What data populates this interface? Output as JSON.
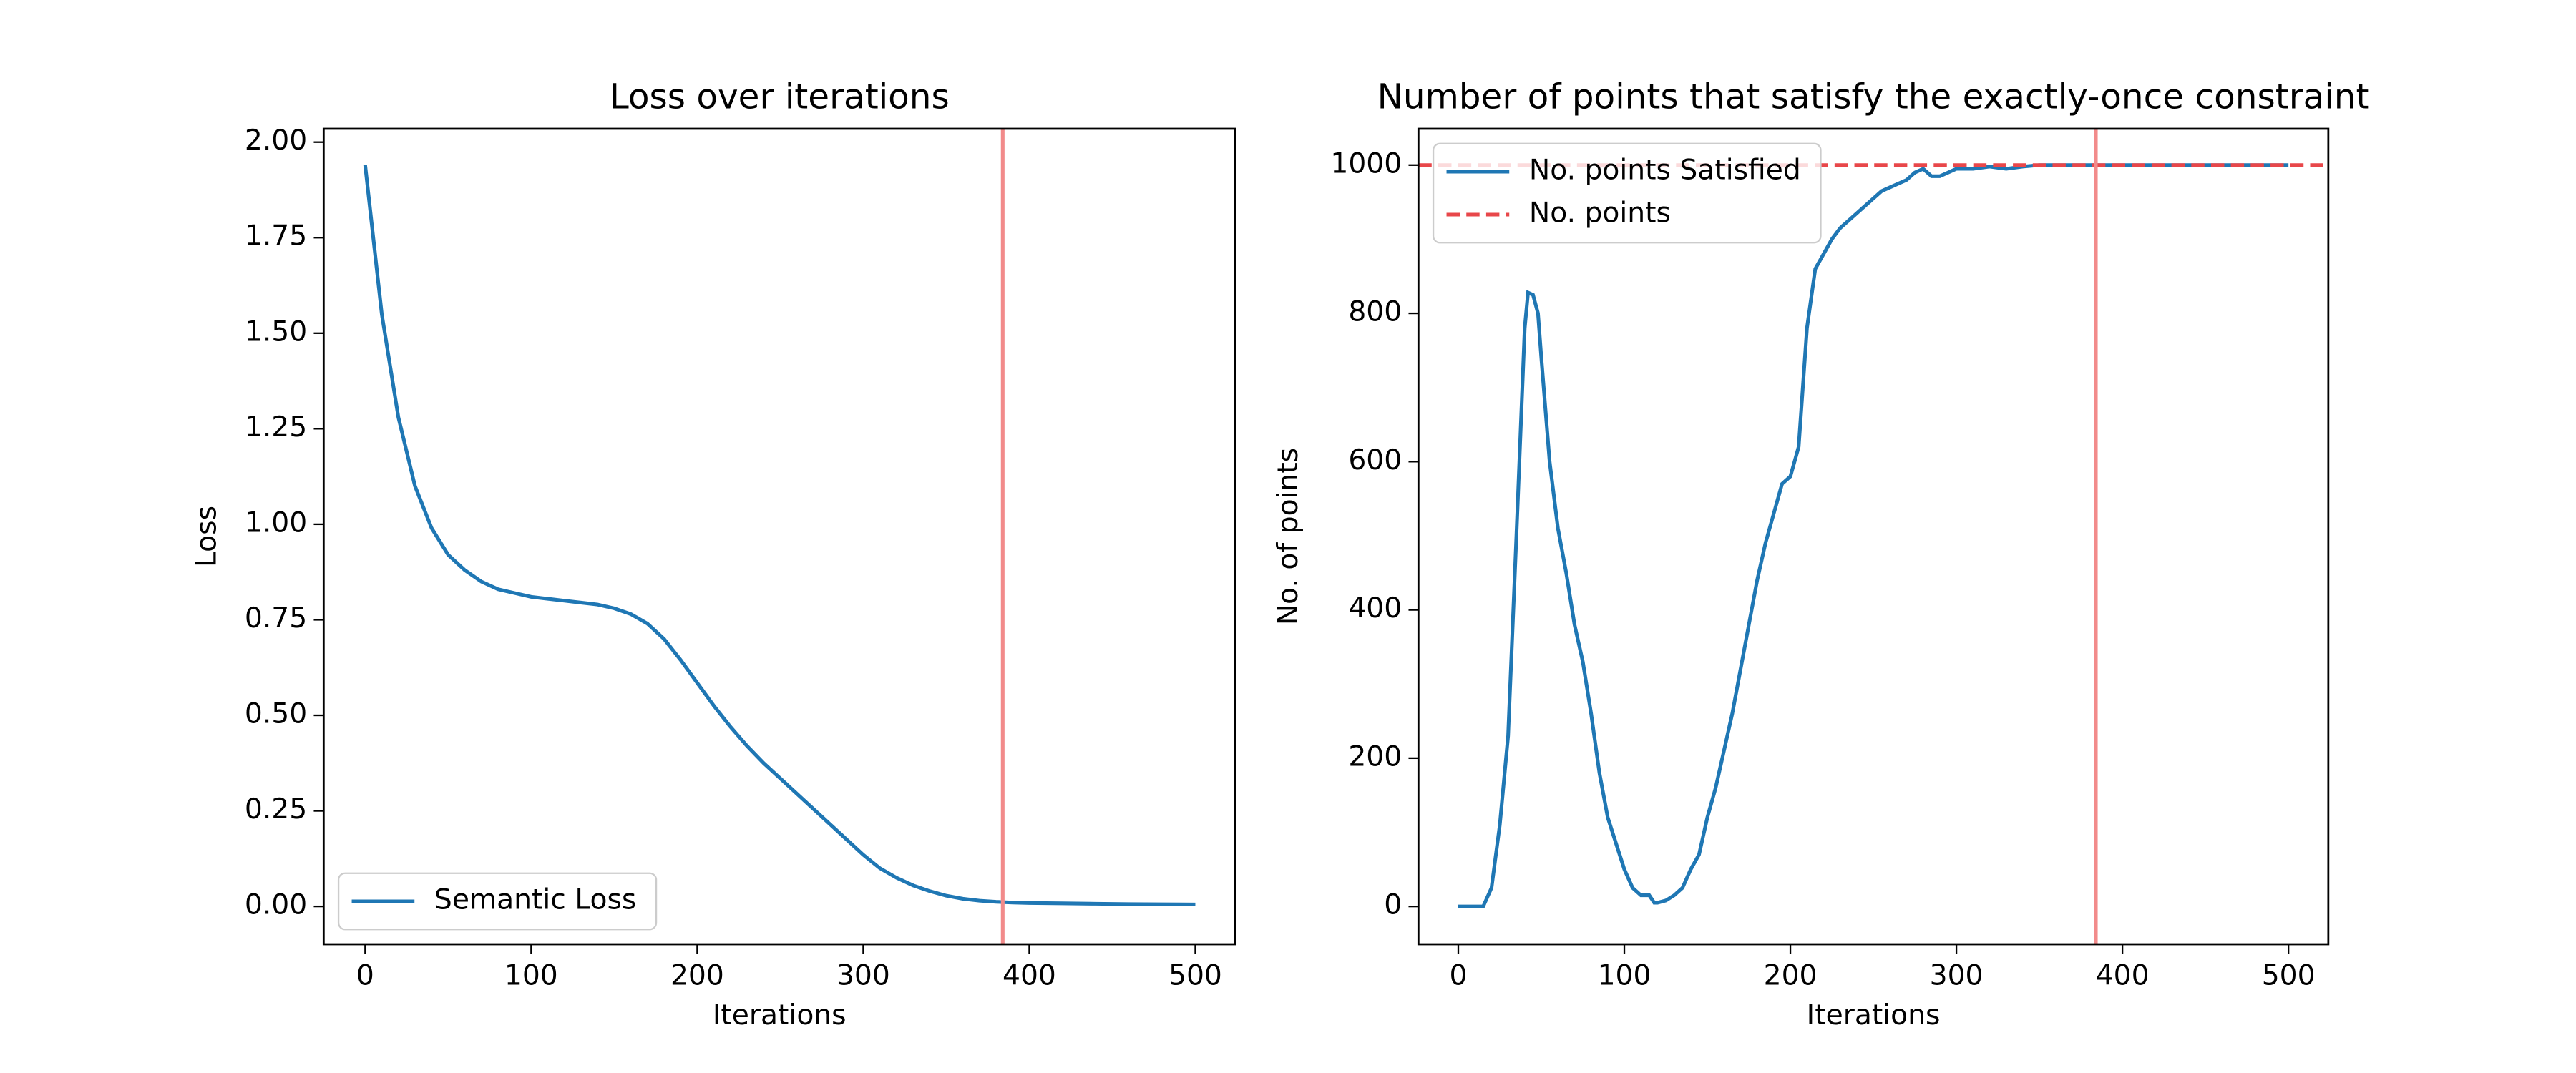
{
  "chart_data": [
    {
      "type": "line",
      "title": "Loss over iterations",
      "xlabel": "Iterations",
      "ylabel": "Loss",
      "xlim": [
        -25,
        524
      ],
      "ylim": [
        -0.099,
        2.035
      ],
      "xticks": [
        0,
        100,
        200,
        300,
        400,
        500
      ],
      "yticks": [
        {
          "value": 0,
          "label": "0.00"
        },
        {
          "value": 0.25,
          "label": "0.25"
        },
        {
          "value": 0.5,
          "label": "0.50"
        },
        {
          "value": 0.75,
          "label": "0.75"
        },
        {
          "value": 1,
          "label": "1.00"
        },
        {
          "value": 1.25,
          "label": "1.25"
        },
        {
          "value": 1.5,
          "label": "1.50"
        },
        {
          "value": 1.75,
          "label": "1.75"
        },
        {
          "value": 2,
          "label": "2.00"
        }
      ],
      "grid": false,
      "legend": "lower left",
      "x": [
        0,
        10,
        20,
        30,
        40,
        50,
        60,
        70,
        80,
        90,
        100,
        110,
        120,
        130,
        140,
        150,
        160,
        170,
        180,
        190,
        200,
        210,
        220,
        230,
        240,
        250,
        260,
        270,
        280,
        290,
        300,
        310,
        320,
        330,
        340,
        350,
        360,
        370,
        380,
        390,
        400,
        420,
        440,
        460,
        480,
        500
      ],
      "series": [
        {
          "name": "Semantic Loss",
          "color": "#1f77b4",
          "values": [
            1.94,
            1.55,
            1.28,
            1.1,
            0.99,
            0.92,
            0.88,
            0.85,
            0.83,
            0.82,
            0.81,
            0.805,
            0.8,
            0.795,
            0.79,
            0.78,
            0.765,
            0.74,
            0.7,
            0.645,
            0.585,
            0.525,
            0.47,
            0.42,
            0.375,
            0.335,
            0.295,
            0.255,
            0.215,
            0.175,
            0.135,
            0.1,
            0.075,
            0.055,
            0.04,
            0.028,
            0.02,
            0.015,
            0.012,
            0.01,
            0.009,
            0.008,
            0.007,
            0.006,
            0.0055,
            0.005
          ]
        }
      ],
      "vlines": [
        {
          "x": 384,
          "color": "#f28b8b"
        }
      ]
    },
    {
      "type": "line",
      "title": "Number of points that satisfy the exactly-once constraint",
      "xlabel": "Iterations",
      "ylabel": "No. of points",
      "xlim": [
        -24,
        524
      ],
      "ylim": [
        -51,
        1049
      ],
      "xticks": [
        0,
        100,
        200,
        300,
        400,
        500
      ],
      "yticks": [
        0,
        200,
        400,
        600,
        800,
        1000
      ],
      "grid": false,
      "legend": "upper left",
      "x": [
        0,
        5,
        10,
        15,
        20,
        25,
        30,
        35,
        40,
        42,
        45,
        48,
        50,
        55,
        60,
        65,
        70,
        75,
        80,
        85,
        90,
        95,
        100,
        105,
        110,
        115,
        118,
        120,
        125,
        130,
        135,
        140,
        145,
        150,
        155,
        160,
        165,
        170,
        175,
        180,
        185,
        190,
        195,
        200,
        205,
        210,
        215,
        220,
        225,
        230,
        235,
        240,
        245,
        250,
        255,
        260,
        265,
        270,
        275,
        280,
        285,
        290,
        295,
        300,
        310,
        320,
        330,
        340,
        350,
        400,
        450,
        500
      ],
      "series": [
        {
          "name": "No. points Satisfied",
          "color": "#1f77b4",
          "values": [
            0,
            0,
            0,
            0,
            25,
            110,
            230,
            500,
            780,
            828,
            825,
            800,
            740,
            600,
            510,
            450,
            380,
            330,
            260,
            180,
            120,
            85,
            50,
            25,
            15,
            15,
            5,
            5,
            8,
            15,
            25,
            50,
            70,
            120,
            160,
            210,
            260,
            320,
            380,
            440,
            490,
            530,
            570,
            580,
            620,
            780,
            860,
            880,
            900,
            915,
            925,
            935,
            945,
            955,
            965,
            970,
            975,
            980,
            990,
            995,
            985,
            985,
            990,
            995,
            995,
            998,
            995,
            998,
            1000,
            1000,
            1000,
            1000
          ]
        }
      ],
      "reference_lines": [
        {
          "name": "No. points",
          "y": 1000,
          "color": "#e8474a",
          "style": "dashed"
        }
      ],
      "vlines": [
        {
          "x": 384,
          "color": "#f28b8b"
        }
      ]
    }
  ]
}
